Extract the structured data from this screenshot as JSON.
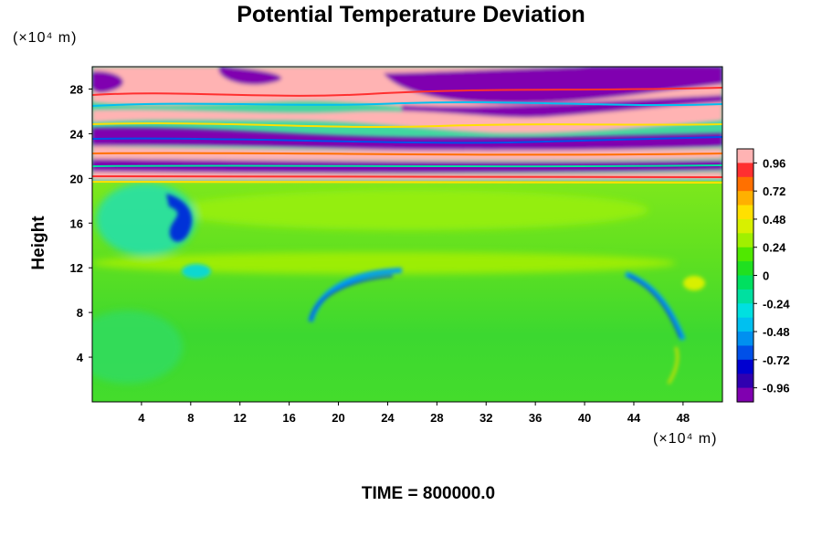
{
  "chart_data": {
    "type": "heatmap",
    "title": "Potential Temperature Deviation",
    "ylabel": "Height",
    "y_unit": "(×10⁴ m)",
    "x_unit": "(×10⁴ m)",
    "xlim": [
      0,
      51.2
    ],
    "ylim": [
      0,
      30
    ],
    "x_ticks": [
      "4",
      "8",
      "12",
      "16",
      "20",
      "24",
      "28",
      "32",
      "36",
      "40",
      "44",
      "48"
    ],
    "y_ticks": [
      "4",
      "8",
      "12",
      "16",
      "20",
      "24",
      "28"
    ],
    "colorbar": {
      "range": [
        -1.08,
        1.08
      ],
      "labels": [
        "0.96",
        "0.72",
        "0.48",
        "0.24",
        "0",
        "-0.24",
        "-0.48",
        "-0.72",
        "-0.96"
      ],
      "colors": [
        "#ffb3b3",
        "#ff3030",
        "#ff7000",
        "#ffb000",
        "#ffe000",
        "#d8f000",
        "#a0f000",
        "#50e800",
        "#20e020",
        "#00e060",
        "#00e0a0",
        "#00e0e0",
        "#00c0f0",
        "#0090f0",
        "#0050e8",
        "#0000d0",
        "#3000b0",
        "#8000b0"
      ]
    },
    "time_label": "TIME = 800000.0"
  }
}
